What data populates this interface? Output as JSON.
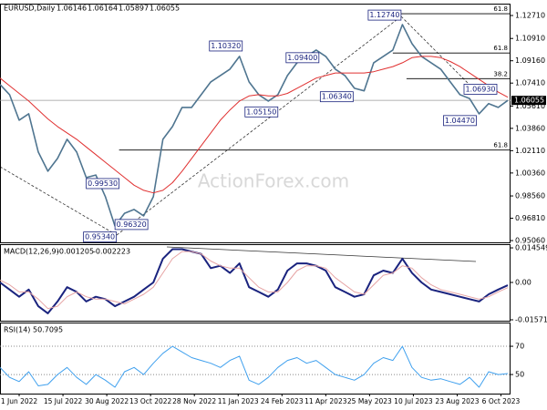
{
  "chart_data": {
    "type": "line",
    "title": "EURUSD,Daily",
    "quote": [
      1.06146,
      1.06164,
      1.05897,
      1.06055
    ],
    "watermark": "ActionForex.com",
    "x": [
      0,
      7,
      14,
      21,
      28,
      35,
      42,
      49,
      56,
      63,
      70,
      77,
      84,
      91,
      98,
      105,
      112,
      119,
      126,
      133,
      140,
      147,
      154,
      161,
      168,
      175,
      182,
      189,
      196,
      203,
      210,
      217,
      224,
      231,
      238,
      245,
      252,
      259,
      266,
      273,
      280,
      287,
      294,
      301,
      308,
      315,
      322,
      329,
      336,
      343,
      350,
      357,
      364,
      371
    ],
    "xlim": [
      0,
      373
    ],
    "xticks": [
      {
        "value": 14,
        "label": "1 Jun 2022"
      },
      {
        "value": 46,
        "label": "15 Jul 2022"
      },
      {
        "value": 78,
        "label": "30 Aug 2022"
      },
      {
        "value": 110,
        "label": "13 Oct 2022"
      },
      {
        "value": 142,
        "label": "28 Nov 2022"
      },
      {
        "value": 174,
        "label": "11 Jan 2023"
      },
      {
        "value": 206,
        "label": "24 Feb 2023"
      },
      {
        "value": 238,
        "label": "11 Apr 2023"
      },
      {
        "value": 270,
        "label": "25 May 2023"
      },
      {
        "value": 302,
        "label": "10 Jul 2023"
      },
      {
        "value": 334,
        "label": "23 Aug 2023"
      },
      {
        "value": 366,
        "label": "6 Oct 2023"
      }
    ],
    "panels": [
      {
        "ylim": [
          0.9492,
          1.1364
        ],
        "yticks": [
          {
            "value": 1.1271,
            "label": "1.12710"
          },
          {
            "value": 1.1091,
            "label": "1.10910"
          },
          {
            "value": 1.0916,
            "label": "1.09160"
          },
          {
            "value": 1.0741,
            "label": "1.07410"
          },
          {
            "value": 1.0561,
            "label": "1.05610"
          },
          {
            "value": 1.0386,
            "label": "1.03860"
          },
          {
            "value": 1.0211,
            "label": "1.02110"
          },
          {
            "value": 1.0036,
            "label": "1.00360"
          },
          {
            "value": 0.9856,
            "label": "0.98560"
          },
          {
            "value": 0.9681,
            "label": "0.96810"
          },
          {
            "value": 0.9506,
            "label": "0.95060"
          }
        ],
        "last_price": 1.06055,
        "series": [
          {
            "name": "EURUSD",
            "color": "#4f7590",
            "values": [
              1.073,
              1.065,
              1.045,
              1.05,
              1.02,
              1.005,
              1.015,
              1.03,
              1.02,
              1.0,
              1.002,
              0.985,
              0.962,
              0.972,
              0.975,
              0.97,
              0.985,
              1.03,
              1.04,
              1.055,
              1.055,
              1.065,
              1.075,
              1.08,
              1.085,
              1.095,
              1.075,
              1.065,
              1.06,
              1.065,
              1.08,
              1.09,
              1.095,
              1.1,
              1.095,
              1.085,
              1.08,
              1.07,
              1.068,
              1.09,
              1.095,
              1.1,
              1.12,
              1.105,
              1.095,
              1.09,
              1.085,
              1.075,
              1.065,
              1.062,
              1.05,
              1.058,
              1.055,
              1.0605
            ]
          },
          {
            "name": "SMA",
            "color": "#e03030",
            "values": [
              1.078,
              1.072,
              1.066,
              1.06,
              1.053,
              1.046,
              1.04,
              1.035,
              1.03,
              1.024,
              1.018,
              1.012,
              1.006,
              1.0,
              0.994,
              0.99,
              0.988,
              0.99,
              0.996,
              1.005,
              1.015,
              1.025,
              1.035,
              1.045,
              1.053,
              1.06,
              1.064,
              1.065,
              1.064,
              1.064,
              1.066,
              1.07,
              1.074,
              1.078,
              1.08,
              1.082,
              1.082,
              1.082,
              1.082,
              1.083,
              1.085,
              1.087,
              1.09,
              1.094,
              1.095,
              1.095,
              1.094,
              1.091,
              1.087,
              1.082,
              1.077,
              1.072,
              1.067,
              1.063
            ]
          }
        ],
        "annotations": [
          {
            "x": 293,
            "value": 1.1274,
            "label": "1.12740"
          },
          {
            "x": 177,
            "value": 1.1032,
            "label": "1.10320"
          },
          {
            "x": 233,
            "value": 1.094,
            "label": "1.09400"
          },
          {
            "x": 258,
            "value": 1.0634,
            "label": "1.06340"
          },
          {
            "x": 203,
            "value": 1.0515,
            "label": "1.05150"
          },
          {
            "x": 363,
            "value": 1.0693,
            "label": "1.06930"
          },
          {
            "x": 348,
            "value": 1.0447,
            "label": "1.04470"
          },
          {
            "x": 85,
            "value": 0.9534,
            "label": "0.95340"
          },
          {
            "x": 108,
            "value": 0.9632,
            "label": "0.96320"
          },
          {
            "x": 87,
            "value": 0.9953,
            "label": "0.99530"
          }
        ],
        "levels": [
          {
            "x": 293,
            "value": 1.1285,
            "label": "61.8"
          },
          {
            "x": 287,
            "value": 1.0977,
            "label": "61.8"
          },
          {
            "x": 297,
            "value": 1.0776,
            "label": "38.2"
          },
          {
            "x": 87,
            "value": 1.0216,
            "label": "61.8"
          }
        ]
      },
      {
        "title": "MACD(12,26,9)",
        "readout": [
          -0.001205,
          -0.002223
        ],
        "ylim": [
          -0.0161,
          0.0161
        ],
        "yticks": [
          0.014549,
          {
            "value": 0,
            "label": "0.00"
          },
          -0.015712
        ],
        "series": [
          {
            "name": "MACD",
            "color": "#1a237e",
            "values": [
              0.0,
              -0.003,
              -0.006,
              -0.003,
              -0.01,
              -0.013,
              -0.008,
              -0.002,
              -0.004,
              -0.008,
              -0.006,
              -0.007,
              -0.01,
              -0.008,
              -0.006,
              -0.003,
              0.0,
              0.01,
              0.014,
              0.014,
              0.013,
              0.012,
              0.006,
              0.007,
              0.004,
              0.008,
              -0.002,
              -0.004,
              -0.006,
              -0.003,
              0.005,
              0.008,
              0.008,
              0.007,
              0.005,
              -0.002,
              -0.004,
              -0.006,
              -0.005,
              0.003,
              0.005,
              0.004,
              0.01,
              0.004,
              0.0,
              -0.003,
              -0.004,
              -0.005,
              -0.006,
              -0.007,
              -0.008,
              -0.005,
              -0.003,
              -0.0012
            ]
          },
          {
            "name": "Signal",
            "color": "#e6a3a3",
            "values": [
              0.001,
              -0.001,
              -0.004,
              -0.004,
              -0.007,
              -0.011,
              -0.01,
              -0.006,
              -0.004,
              -0.006,
              -0.007,
              -0.007,
              -0.008,
              -0.009,
              -0.007,
              -0.005,
              -0.002,
              0.004,
              0.01,
              0.013,
              0.013,
              0.012,
              0.009,
              0.007,
              0.006,
              0.006,
              0.002,
              -0.002,
              -0.004,
              -0.004,
              0.0,
              0.005,
              0.007,
              0.007,
              0.006,
              0.002,
              -0.001,
              -0.004,
              -0.005,
              -0.001,
              0.003,
              0.004,
              0.007,
              0.006,
              0.002,
              -0.001,
              -0.003,
              -0.004,
              -0.005,
              -0.006,
              -0.007,
              -0.006,
              -0.004,
              -0.0022
            ]
          }
        ]
      },
      {
        "title": "RSI(14)",
        "readout": [
          50.7095
        ],
        "ylim": [
          36.5,
          86.8
        ],
        "yticks": [
          70,
          50
        ],
        "grid": true,
        "series": [
          {
            "name": "RSI",
            "color": "#3fa0ee",
            "values": [
              55,
              48,
              45,
              52,
              42,
              43,
              50,
              55,
              48,
              43,
              50,
              46,
              41,
              52,
              55,
              50,
              58,
              65,
              70,
              66,
              62,
              60,
              58,
              55,
              60,
              63,
              46,
              43,
              48,
              55,
              60,
              62,
              58,
              60,
              55,
              50,
              48,
              46,
              50,
              58,
              62,
              60,
              70,
              55,
              48,
              46,
              47,
              45,
              43,
              48,
              41,
              52,
              50,
              50.7095
            ]
          }
        ]
      }
    ]
  }
}
